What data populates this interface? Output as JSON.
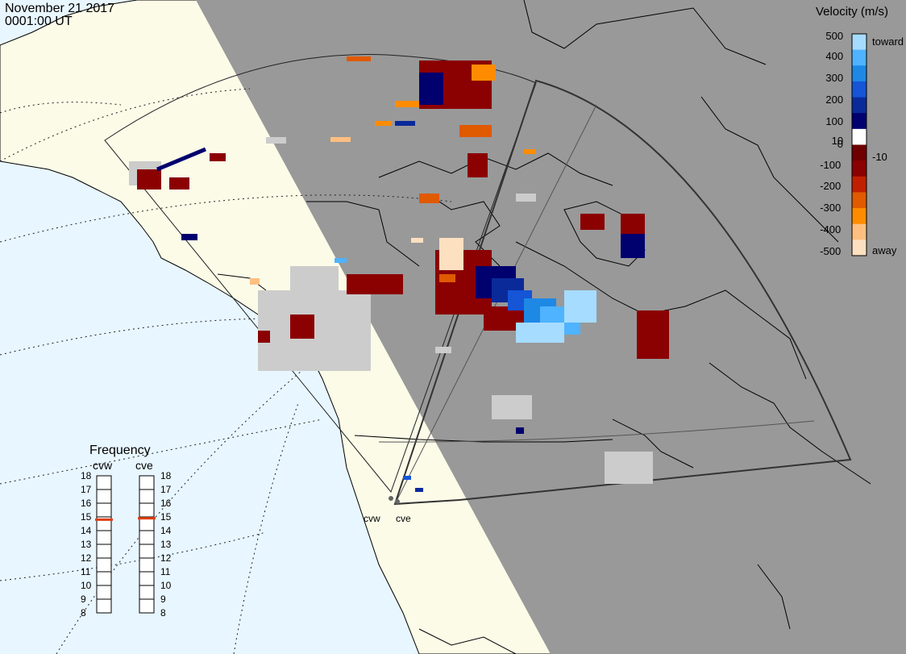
{
  "header": {
    "date": "November 21 2017",
    "time": "0001:00 UT"
  },
  "colorbar": {
    "title": "Velocity (m/s)",
    "ticks": [
      "500",
      "400",
      "300",
      "200",
      "100",
      "10",
      "0",
      "-10",
      "-100",
      "-200",
      "-300",
      "-400",
      "-500"
    ],
    "toward_label": "toward",
    "away_label": "away",
    "range": [
      -500,
      500
    ],
    "colors": [
      "#fde0c0",
      "#ffbf80",
      "#ff8c00",
      "#e05a00",
      "#c02000",
      "#8b0000",
      "#6e0000",
      "#ffffff",
      "#00006e",
      "#0a2a9a",
      "#1555d6",
      "#1e88e5",
      "#4fb3ff",
      "#a6dcff"
    ]
  },
  "frequency": {
    "title": "Frequency",
    "radars": [
      "cvw",
      "cve"
    ],
    "scale": [
      "18",
      "17",
      "16",
      "15",
      "14",
      "13",
      "12",
      "11",
      "10",
      "9",
      "8"
    ],
    "values_mhz": [
      14.8,
      14.9
    ],
    "indicator_color": "#e04010"
  },
  "radar_sites": [
    "cvw",
    "cve"
  ],
  "map": {
    "ocean_color": "#e8f6ff",
    "land_day_color": "#fbfbe8",
    "night_color": "#999999",
    "ground_scatter_color": "#cccccc"
  }
}
